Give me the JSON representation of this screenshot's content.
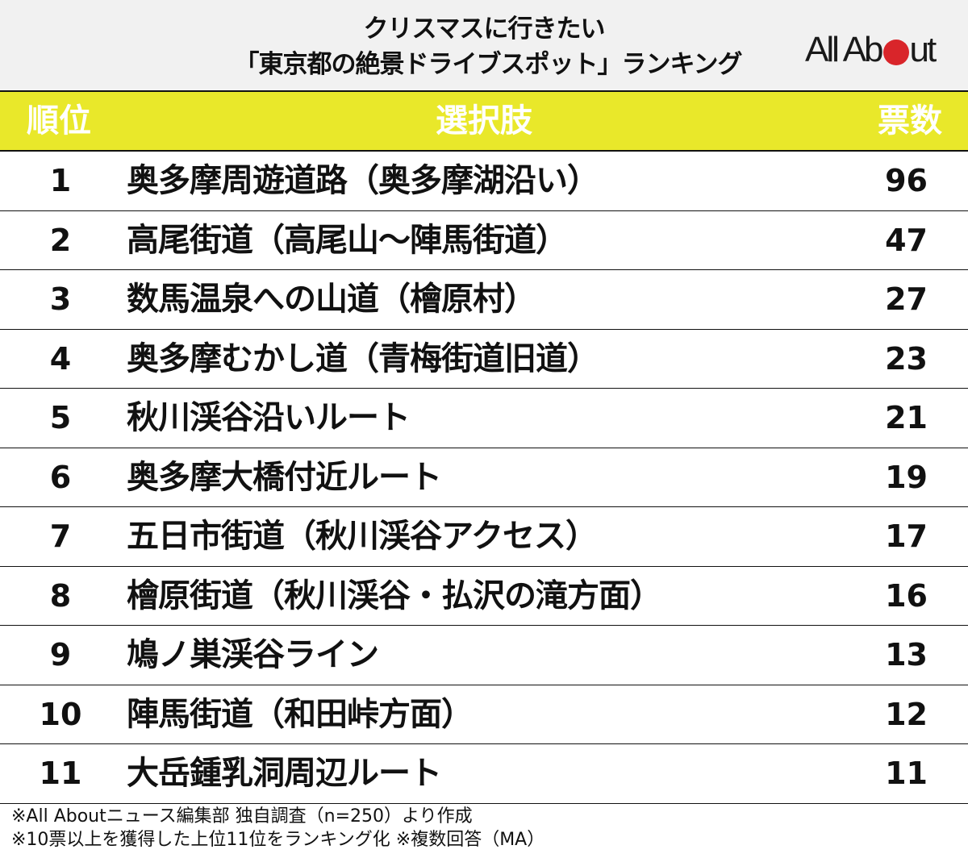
{
  "title": {
    "line1": "クリスマスに行きたい",
    "line2": "「東京都の絶景ドライブスポット」ランキング"
  },
  "logo": {
    "text_before": "All Ab",
    "text_after": "ut",
    "dot_color": "#d9252a",
    "full_text": "All About"
  },
  "colors": {
    "header_bg": "#e9e82a",
    "title_bg": "#f1f1f1",
    "header_text": "#ffffff"
  },
  "table": {
    "headers": {
      "rank": "順位",
      "choice": "選択肢",
      "votes": "票数"
    },
    "rows": [
      {
        "rank": "1",
        "choice": "奥多摩周遊道路（奥多摩湖沿い）",
        "votes": "96"
      },
      {
        "rank": "2",
        "choice": "高尾街道（高尾山～陣馬街道）",
        "votes": "47"
      },
      {
        "rank": "3",
        "choice": "数馬温泉への山道（檜原村）",
        "votes": "27"
      },
      {
        "rank": "4",
        "choice": "奥多摩むかし道（青梅街道旧道）",
        "votes": "23"
      },
      {
        "rank": "5",
        "choice": "秋川渓谷沿いルート",
        "votes": "21"
      },
      {
        "rank": "6",
        "choice": "奥多摩大橋付近ルート",
        "votes": "19"
      },
      {
        "rank": "7",
        "choice": "五日市街道（秋川渓谷アクセス）",
        "votes": "17"
      },
      {
        "rank": "8",
        "choice": "檜原街道（秋川渓谷・払沢の滝方面）",
        "votes": "16"
      },
      {
        "rank": "9",
        "choice": "鳩ノ巣渓谷ライン",
        "votes": "13"
      },
      {
        "rank": "10",
        "choice": "陣馬街道（和田峠方面）",
        "votes": "12"
      },
      {
        "rank": "11",
        "choice": "大岳鍾乳洞周辺ルート",
        "votes": "11"
      }
    ]
  },
  "footnotes": {
    "line1": "※All Aboutニュース編集部 独自調査（n=250）より作成",
    "line2": "※10票以上を獲得した上位11位をランキング化 ※複数回答（MA）"
  }
}
